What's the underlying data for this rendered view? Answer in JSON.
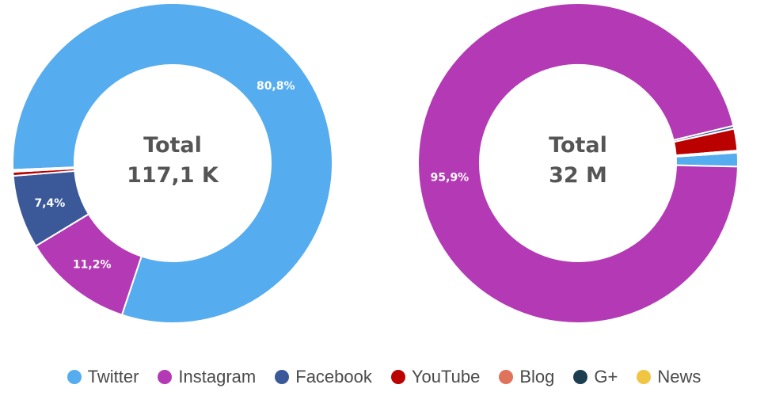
{
  "chart_data": [
    {
      "type": "pie",
      "donut": true,
      "center_title": "Total",
      "center_value": "117,1 K",
      "slices": [
        {
          "name": "Twitter",
          "value": 80.8,
          "label": "80,8%"
        },
        {
          "name": "Instagram",
          "value": 11.2,
          "label": "11,2%"
        },
        {
          "name": "Facebook",
          "value": 7.4,
          "label": "7,4%"
        },
        {
          "name": "YouTube",
          "value": 0.4,
          "label": ""
        },
        {
          "name": "Blog",
          "value": 0.1,
          "label": ""
        },
        {
          "name": "G+",
          "value": 0.1,
          "label": ""
        },
        {
          "name": "News",
          "value": 0.0,
          "label": ""
        }
      ]
    },
    {
      "type": "pie",
      "donut": true,
      "center_title": "Total",
      "center_value": "32 M",
      "slices": [
        {
          "name": "Twitter",
          "value": 1.4,
          "label": ""
        },
        {
          "name": "Instagram",
          "value": 95.9,
          "label": "95,9%"
        },
        {
          "name": "Facebook",
          "value": 0.3,
          "label": ""
        },
        {
          "name": "YouTube",
          "value": 2.2,
          "label": ""
        },
        {
          "name": "Blog",
          "value": 0.1,
          "label": ""
        },
        {
          "name": "G+",
          "value": 0.1,
          "label": ""
        },
        {
          "name": "News",
          "value": 0.0,
          "label": ""
        }
      ]
    }
  ],
  "legend": [
    {
      "name": "Twitter",
      "color": "#55ACEE"
    },
    {
      "name": "Instagram",
      "color": "#B33AB4"
    },
    {
      "name": "Facebook",
      "color": "#3B5998"
    },
    {
      "name": "YouTube",
      "color": "#BB0000"
    },
    {
      "name": "Blog",
      "color": "#E0735B"
    },
    {
      "name": "G+",
      "color": "#1D3E50"
    },
    {
      "name": "News",
      "color": "#F0C541"
    }
  ]
}
